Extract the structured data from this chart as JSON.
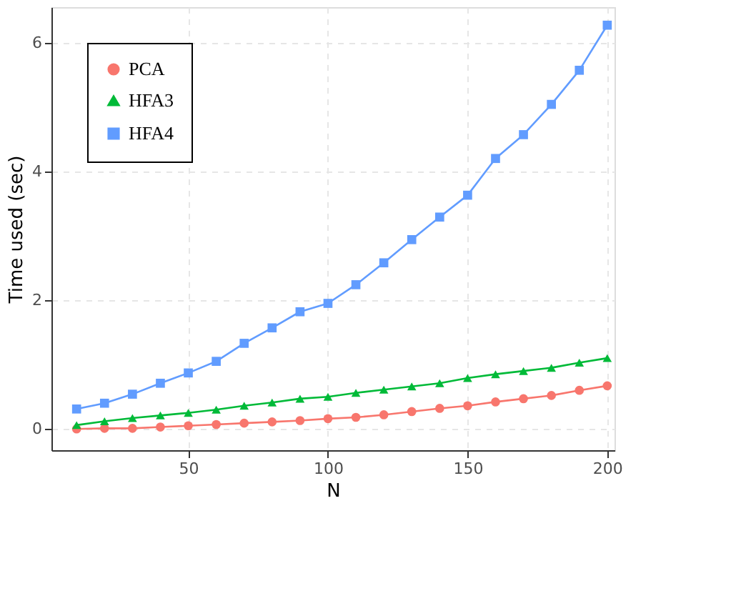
{
  "chart_data": {
    "type": "line",
    "xlabel": "N",
    "ylabel": "Time used (sec)",
    "x": [
      10,
      20,
      30,
      40,
      50,
      60,
      70,
      80,
      90,
      100,
      110,
      120,
      130,
      140,
      150,
      160,
      170,
      180,
      190,
      200
    ],
    "xlim": [
      1,
      202.6
    ],
    "xticks": [
      50,
      100,
      150,
      200
    ],
    "ylim": [
      -0.33,
      6.55
    ],
    "yticks": [
      0,
      2,
      4,
      6
    ],
    "grid": true,
    "legend": "top left",
    "line_style": "solid",
    "series": [
      {
        "name": "PCA",
        "color": "#f8766d",
        "marker": "circle",
        "values": [
          0.0,
          0.01,
          0.01,
          0.03,
          0.05,
          0.07,
          0.09,
          0.11,
          0.13,
          0.16,
          0.18,
          0.22,
          0.27,
          0.32,
          0.36,
          0.42,
          0.47,
          0.52,
          0.6,
          0.67
        ]
      },
      {
        "name": "HFA3",
        "color": "#00ba38",
        "marker": "triangle",
        "values": [
          0.06,
          0.12,
          0.17,
          0.21,
          0.25,
          0.3,
          0.36,
          0.41,
          0.47,
          0.5,
          0.56,
          0.61,
          0.66,
          0.71,
          0.79,
          0.85,
          0.9,
          0.95,
          1.03,
          1.1
        ]
      },
      {
        "name": "HFA4",
        "color": "#619cff",
        "marker": "square",
        "values": [
          0.31,
          0.4,
          0.54,
          0.71,
          0.87,
          1.05,
          1.33,
          1.57,
          1.82,
          1.95,
          2.24,
          2.58,
          2.94,
          3.29,
          3.63,
          4.2,
          4.57,
          5.04,
          5.57,
          6.27
        ]
      }
    ]
  }
}
